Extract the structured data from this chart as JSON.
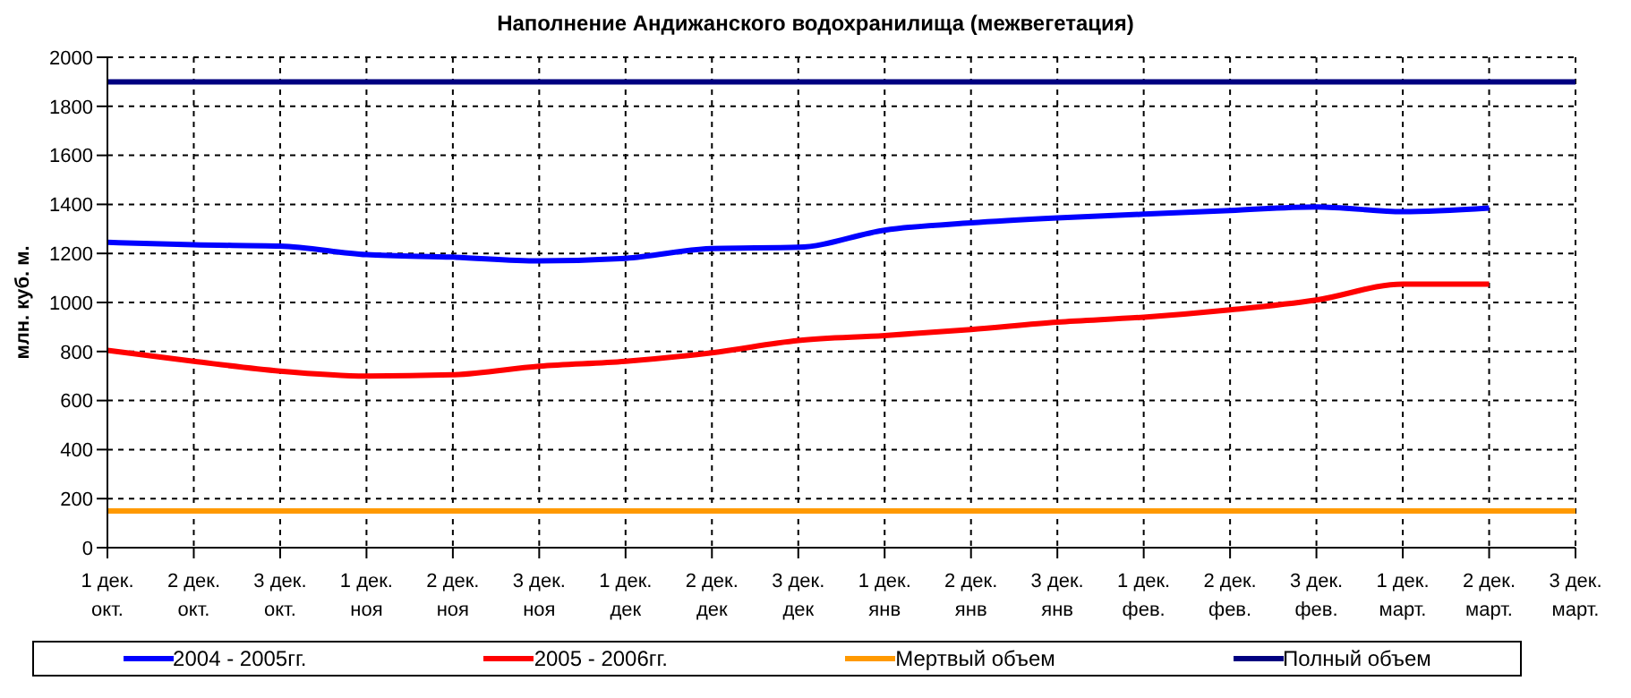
{
  "chart_data": {
    "type": "line",
    "title": "Наполнение Андижанского водохранилища (межвегетация)",
    "ylabel": "млн. куб. м.",
    "categories": [
      "1 дек.\nокт.",
      "2 дек.\nокт.",
      "3 дек.\nокт.",
      "1 дек.\nноя",
      "2 дек.\nноя",
      "3 дек.\nноя",
      "1 дек.\nдек",
      "2 дек.\nдек",
      "3 дек.\nдек",
      "1 дек.\nянв",
      "2 дек.\nянв",
      "3 дек.\nянв",
      "1 дек.\nфев.",
      "2 дек.\nфев.",
      "3 дек.\nфев.",
      "1 дек.\nмарт.",
      "2 дек.\nмарт.",
      "3 дек.\nмарт."
    ],
    "series": [
      {
        "name": "2004 - 2005гг.",
        "color": "#0000ff",
        "values": [
          1245,
          1235,
          1230,
          1195,
          1185,
          1170,
          1180,
          1220,
          1225,
          1295,
          1325,
          1345,
          1360,
          1375,
          1390,
          1370,
          1385,
          null
        ]
      },
      {
        "name": "2005 - 2006гг.",
        "color": "#ff0000",
        "values": [
          805,
          760,
          720,
          700,
          705,
          740,
          760,
          795,
          845,
          865,
          890,
          920,
          940,
          970,
          1010,
          1075,
          1075,
          null
        ]
      },
      {
        "name": "Полный объем",
        "color": "#000080",
        "values": [
          1900,
          1900,
          1900,
          1900,
          1900,
          1900,
          1900,
          1900,
          1900,
          1900,
          1900,
          1900,
          1900,
          1900,
          1900,
          1900,
          1900,
          1900
        ]
      },
      {
        "name": "Мертвый объем",
        "color": "#ff9900",
        "values": [
          150,
          150,
          150,
          150,
          150,
          150,
          150,
          150,
          150,
          150,
          150,
          150,
          150,
          150,
          150,
          150,
          150,
          150
        ]
      }
    ],
    "ylim": [
      0,
      2000
    ],
    "yticks": [
      0,
      200,
      400,
      600,
      800,
      1000,
      1200,
      1400,
      1600,
      1800,
      2000
    ],
    "grid": true,
    "legend": "bottom",
    "marker": "none",
    "line_style": "solid"
  }
}
